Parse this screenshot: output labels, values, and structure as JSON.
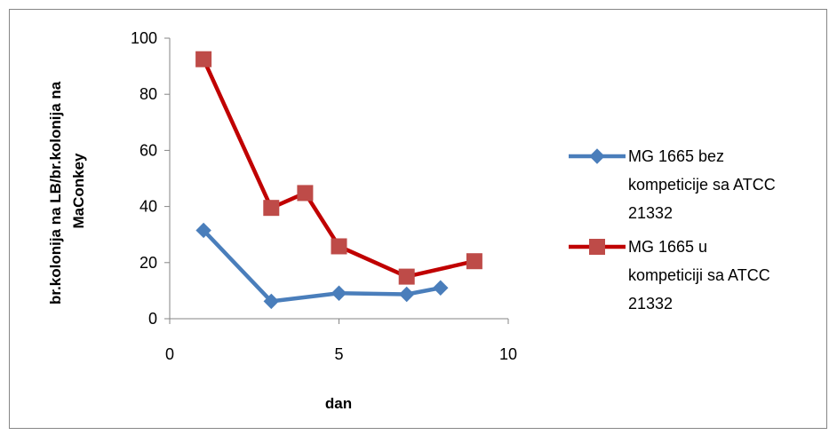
{
  "chart_data": {
    "type": "scatter",
    "title": "",
    "xlabel": "dan",
    "ylabel_lines": [
      "br.kolonija na LB/br.kolonija na",
      "MaConkey"
    ],
    "xlim": [
      0,
      10
    ],
    "ylim": [
      0,
      100
    ],
    "x_ticks": [
      "0",
      "5",
      "10"
    ],
    "y_ticks": [
      "0",
      "20",
      "40",
      "60",
      "80",
      "100"
    ],
    "grid": false,
    "legend_position": "right",
    "series": [
      {
        "name_lines": [
          "MG 1665 bez",
          "kompeticije sa ATCC",
          "21332"
        ],
        "marker": "diamond",
        "color": "#4a7ebb",
        "x": [
          1,
          3,
          5,
          7,
          8
        ],
        "y": [
          31.5,
          6.2,
          9.1,
          8.7,
          11.0
        ]
      },
      {
        "name_lines": [
          "MG 1665 u",
          "kompeticiji sa ATCC",
          "21332"
        ],
        "marker": "square",
        "color": "#be4b48",
        "line_color": "#c00000",
        "x": [
          1,
          3,
          4,
          5,
          7,
          9
        ],
        "y": [
          92.5,
          39.5,
          44.8,
          25.8,
          15.0,
          20.5
        ]
      }
    ]
  }
}
